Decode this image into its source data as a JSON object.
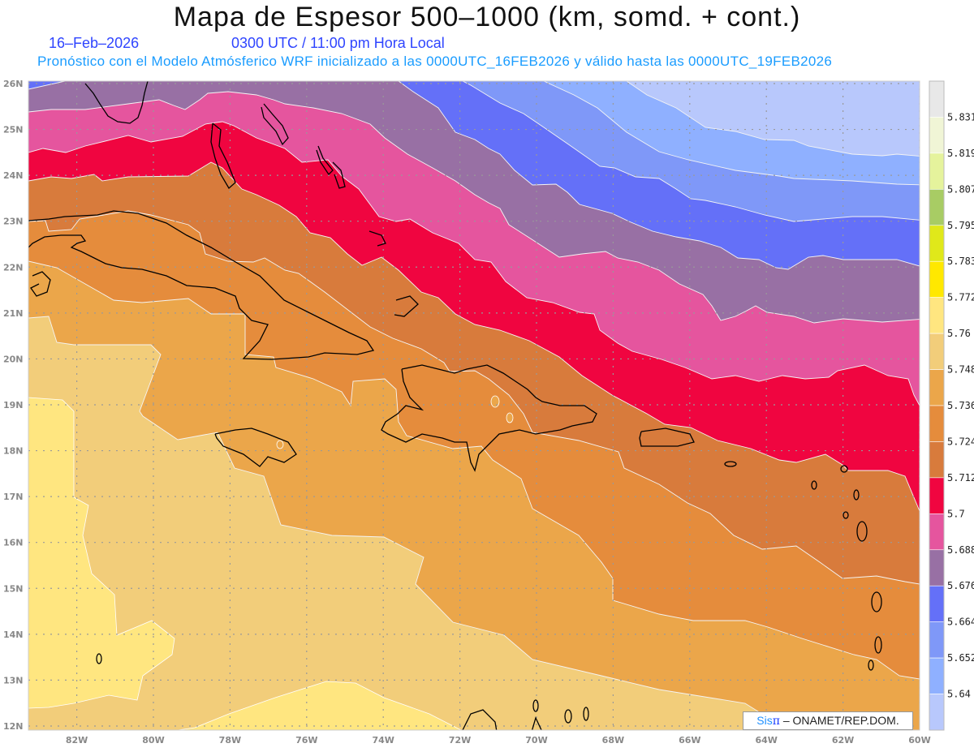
{
  "header": {
    "title": "Mapa de Espesor 500–1000 (km, somd. + cont.)",
    "date": "16–Feb–2026",
    "time": "0300 UTC / 11:00 pm Hora Local",
    "forecast_info": "Pronóstico con el Modelo Atmósferico WRF inicializado a las 0000UTC_16FEB2026 y válido hasta las  0000UTC_19FEB2026"
  },
  "map": {
    "lat_labels": [
      "26N",
      "25N",
      "24N",
      "23N",
      "22N",
      "21N",
      "20N",
      "19N",
      "18N",
      "17N",
      "16N",
      "15N",
      "14N",
      "13N",
      "12N"
    ],
    "lon_labels": [
      "82W",
      "80W",
      "78W",
      "76W",
      "74W",
      "72W",
      "70W",
      "68W",
      "66W",
      "64W",
      "62W",
      "60W"
    ]
  },
  "legend": {
    "labels": [
      "5.831",
      "5.819",
      "5.807",
      "5.795",
      "5.783",
      "5.772",
      "5.76",
      "5.748",
      "5.736",
      "5.724",
      "5.712",
      "5.7",
      "5.688",
      "5.676",
      "5.664",
      "5.652",
      "5.64"
    ],
    "colors": [
      "#e8e8e8",
      "#f0f5d6",
      "#e5f39c",
      "#a8cc64",
      "#e0e81a",
      "#ffe800",
      "#ffe680",
      "#f2cd7a",
      "#eba64a",
      "#e58c3c",
      "#d87b3c",
      "#f00540",
      "#e5559e",
      "#9870a4",
      "#6470f8",
      "#7f98f8",
      "#8fb0ff",
      "#b8c8fc"
    ]
  },
  "credit": {
    "brand_sis": "Sis",
    "brand_pi": "π",
    "text": " –  ONAMET/REP.DOM."
  }
}
